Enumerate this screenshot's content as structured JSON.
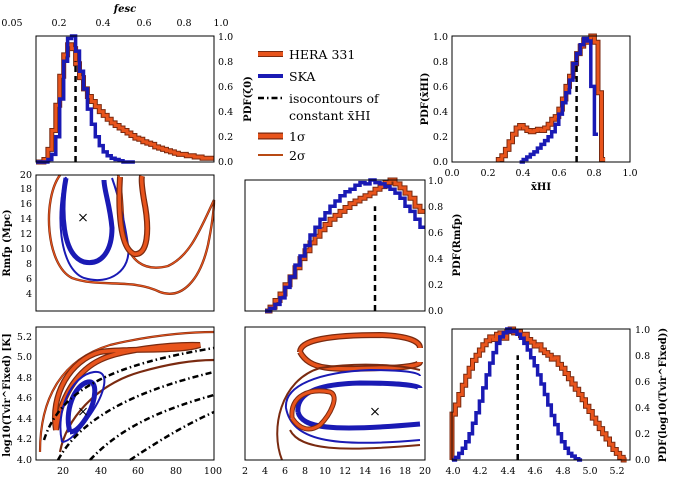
{
  "colors": {
    "hera": "#e8541c",
    "hera_edge": "#7a2a10",
    "ska": "#1a1ab4",
    "truth": "#000000"
  },
  "legend": {
    "items": [
      {
        "label": "HERA 331",
        "style": "hera"
      },
      {
        "label": "SKA",
        "style": "ska"
      },
      {
        "label": "isocontours of",
        "style": "dashdot"
      },
      {
        "label": "constant x̄HI",
        "style": "none"
      },
      {
        "label": "1σ",
        "style": "hera-thick"
      },
      {
        "label": "2σ",
        "style": "hera-thin"
      }
    ]
  },
  "chart_data": [
    {
      "id": "fesc_top_axis",
      "type": "axis",
      "title": "fesc",
      "ticks": [
        "0.05",
        "0.2",
        "0.4",
        "0.6",
        "0.8",
        "1.0"
      ]
    },
    {
      "id": "pdf_zeta",
      "type": "histogram",
      "ylabel": "PDF(ζ0)",
      "xlim": [
        10,
        100
      ],
      "ylim": [
        0,
        1.0
      ],
      "yticks": [
        "0.0",
        "0.2",
        "0.4",
        "0.6",
        "0.8",
        "1.0"
      ],
      "truth": 30,
      "series": [
        {
          "name": "HERA 331",
          "bins": [
            10,
            12,
            14,
            16,
            18,
            20,
            22,
            24,
            26,
            28,
            30,
            32,
            34,
            36,
            38,
            40,
            42,
            44,
            46,
            48,
            50,
            52,
            54,
            56,
            58,
            60,
            62,
            64,
            66,
            68,
            70,
            72,
            74,
            76,
            78,
            80,
            82,
            84,
            86,
            88,
            90,
            92,
            94,
            96,
            98,
            100
          ],
          "values": [
            0.0,
            0.0,
            0.02,
            0.1,
            0.25,
            0.45,
            0.68,
            0.85,
            0.93,
            0.9,
            0.78,
            0.67,
            0.58,
            0.52,
            0.48,
            0.44,
            0.4,
            0.37,
            0.34,
            0.31,
            0.29,
            0.27,
            0.25,
            0.23,
            0.21,
            0.19,
            0.18,
            0.16,
            0.15,
            0.14,
            0.12,
            0.11,
            0.1,
            0.09,
            0.08,
            0.07,
            0.06,
            0.06,
            0.05,
            0.05,
            0.04,
            0.04,
            0.03,
            0.03,
            0.03
          ]
        },
        {
          "name": "SKA",
          "bins": [
            10,
            12,
            14,
            16,
            18,
            20,
            22,
            24,
            26,
            28,
            30,
            32,
            34,
            36,
            38,
            40,
            42,
            44,
            46,
            48,
            50,
            52,
            54,
            56,
            58,
            60
          ],
          "values": [
            0.0,
            0.0,
            0.0,
            0.02,
            0.06,
            0.2,
            0.5,
            0.8,
            0.98,
            1.0,
            0.88,
            0.72,
            0.58,
            0.42,
            0.3,
            0.2,
            0.13,
            0.08,
            0.05,
            0.03,
            0.02,
            0.01,
            0.0,
            0.0,
            0.0
          ]
        }
      ]
    },
    {
      "id": "pdf_xhi",
      "type": "histogram",
      "xlabel": "x̄HI",
      "ylabel": "PDF(x̄HI)",
      "xlim": [
        0,
        1
      ],
      "ylim": [
        0,
        1.0
      ],
      "xticks": [
        "0.0",
        "0.2",
        "0.4",
        "0.6",
        "0.8",
        "1.0"
      ],
      "yticks": [
        "0.0",
        "0.2",
        "0.4",
        "0.6",
        "0.8",
        "1.0"
      ],
      "truth": 0.7,
      "series": [
        {
          "name": "HERA 331",
          "bins": [
            0.26,
            0.28,
            0.3,
            0.32,
            0.34,
            0.36,
            0.38,
            0.4,
            0.42,
            0.44,
            0.46,
            0.48,
            0.5,
            0.52,
            0.54,
            0.56,
            0.58,
            0.6,
            0.62,
            0.64,
            0.66,
            0.68,
            0.7,
            0.72,
            0.74,
            0.76,
            0.78,
            0.8,
            0.82,
            0.84,
            0.86
          ],
          "values": [
            0.02,
            0.05,
            0.1,
            0.16,
            0.22,
            0.27,
            0.29,
            0.27,
            0.25,
            0.24,
            0.25,
            0.26,
            0.25,
            0.27,
            0.3,
            0.34,
            0.36,
            0.42,
            0.5,
            0.6,
            0.68,
            0.78,
            0.86,
            0.92,
            0.97,
            0.95,
            1.0,
            0.95,
            0.55,
            0.02
          ]
        },
        {
          "name": "SKA",
          "bins": [
            0.38,
            0.4,
            0.42,
            0.44,
            0.46,
            0.48,
            0.5,
            0.52,
            0.54,
            0.56,
            0.58,
            0.6,
            0.62,
            0.64,
            0.66,
            0.68,
            0.7,
            0.72,
            0.74,
            0.76,
            0.78,
            0.8,
            0.82
          ],
          "values": [
            0.0,
            0.02,
            0.04,
            0.06,
            0.08,
            0.11,
            0.14,
            0.17,
            0.2,
            0.24,
            0.3,
            0.38,
            0.47,
            0.55,
            0.65,
            0.78,
            0.86,
            0.93,
            0.98,
            0.96,
            0.6,
            0.22
          ]
        }
      ]
    },
    {
      "id": "contour_rmfp_zeta",
      "type": "contour",
      "ylabel": "Rmfp (Mpc)",
      "xlim": [
        10,
        100
      ],
      "ylim": [
        2,
        20
      ],
      "yticks": [
        "4",
        "6",
        "8",
        "10",
        "12",
        "14",
        "16",
        "18",
        "20"
      ],
      "truth": [
        30,
        15
      ]
    },
    {
      "id": "pdf_rmfp",
      "type": "histogram",
      "ylabel": "PDF(Rmfp)",
      "xlim": [
        2,
        20
      ],
      "ylim": [
        0,
        1.0
      ],
      "yticks": [
        "0.0",
        "0.2",
        "0.4",
        "0.6",
        "0.8",
        "1.0"
      ],
      "truth": 15,
      "series": [
        {
          "name": "HERA 331",
          "bins": [
            4,
            4.5,
            5,
            5.5,
            6,
            6.5,
            7,
            7.5,
            8,
            8.5,
            9,
            9.5,
            10,
            10.5,
            11,
            11.5,
            12,
            12.5,
            13,
            13.5,
            14,
            14.5,
            15,
            15.5,
            16,
            16.5,
            17,
            17.5,
            18,
            18.5,
            19,
            19.5,
            20
          ],
          "values": [
            0.0,
            0.03,
            0.08,
            0.13,
            0.2,
            0.26,
            0.33,
            0.4,
            0.46,
            0.52,
            0.57,
            0.62,
            0.66,
            0.7,
            0.73,
            0.76,
            0.79,
            0.82,
            0.84,
            0.86,
            0.88,
            0.9,
            0.93,
            0.95,
            0.98,
            1.0,
            0.97,
            0.94,
            0.9,
            0.86,
            0.8,
            0.76
          ]
        },
        {
          "name": "SKA",
          "bins": [
            4,
            4.5,
            5,
            5.5,
            6,
            6.5,
            7,
            7.5,
            8,
            8.5,
            9,
            9.5,
            10,
            10.5,
            11,
            11.5,
            12,
            12.5,
            13,
            13.5,
            14,
            14.5,
            15,
            15.5,
            16,
            16.5,
            17,
            17.5,
            18,
            18.5,
            19,
            19.5,
            20
          ],
          "values": [
            0.0,
            0.02,
            0.05,
            0.1,
            0.18,
            0.26,
            0.35,
            0.42,
            0.5,
            0.58,
            0.64,
            0.7,
            0.75,
            0.8,
            0.84,
            0.88,
            0.91,
            0.93,
            0.96,
            0.98,
            0.97,
            1.0,
            0.98,
            0.97,
            0.95,
            0.93,
            0.9,
            0.86,
            0.8,
            0.76,
            0.7,
            0.64
          ]
        }
      ]
    },
    {
      "id": "contour_tvir_zeta",
      "type": "contour",
      "ylabel": "log10(Tvir^Fixed) [K]",
      "xlim": [
        10,
        100
      ],
      "ylim": [
        4.0,
        5.3
      ],
      "xticks": [
        "20",
        "40",
        "60",
        "80",
        "100"
      ],
      "yticks": [
        "4.0",
        "4.2",
        "4.4",
        "4.6",
        "4.8",
        "5.0",
        "5.2"
      ],
      "truth": [
        30,
        4.48
      ]
    },
    {
      "id": "contour_tvir_rmfp",
      "type": "contour",
      "xlim": [
        2,
        20
      ],
      "ylim": [
        4.0,
        5.3
      ],
      "xticks": [
        "2",
        "4",
        "6",
        "8",
        "10",
        "12",
        "14",
        "16",
        "18",
        "20"
      ],
      "truth": [
        15,
        4.48
      ]
    },
    {
      "id": "pdf_tvir",
      "type": "histogram",
      "ylabel": "PDF(log10(Tvir^Fixed))",
      "xlim": [
        4.0,
        5.3
      ],
      "ylim": [
        0,
        1.0
      ],
      "xticks": [
        "4.0",
        "4.2",
        "4.4",
        "4.6",
        "4.8",
        "5.0",
        "5.2"
      ],
      "yticks": [
        "0.0",
        "0.2",
        "0.4",
        "0.6",
        "0.8",
        "1.0"
      ],
      "truth": 4.48,
      "series": [
        {
          "name": "HERA 331",
          "bins": [
            4.0,
            4.025,
            4.05,
            4.075,
            4.1,
            4.125,
            4.15,
            4.175,
            4.2,
            4.225,
            4.25,
            4.275,
            4.3,
            4.325,
            4.35,
            4.375,
            4.4,
            4.425,
            4.45,
            4.475,
            4.5,
            4.525,
            4.55,
            4.575,
            4.6,
            4.625,
            4.65,
            4.675,
            4.7,
            4.725,
            4.75,
            4.775,
            4.8,
            4.825,
            4.85,
            4.875,
            4.9,
            4.925,
            4.95,
            4.975,
            5.0,
            5.025,
            5.05,
            5.075,
            5.1,
            5.125,
            5.15,
            5.175,
            5.2,
            5.225,
            5.25,
            5.275
          ],
          "values": [
            0.35,
            0.42,
            0.5,
            0.57,
            0.64,
            0.7,
            0.76,
            0.8,
            0.84,
            0.88,
            0.91,
            0.94,
            0.92,
            0.96,
            0.97,
            0.93,
            0.98,
            1.0,
            0.97,
            0.98,
            0.95,
            0.96,
            0.92,
            0.9,
            0.87,
            0.88,
            0.84,
            0.82,
            0.8,
            0.77,
            0.78,
            0.73,
            0.7,
            0.66,
            0.62,
            0.58,
            0.54,
            0.5,
            0.46,
            0.41,
            0.37,
            0.32,
            0.28,
            0.24,
            0.2,
            0.16,
            0.12,
            0.08,
            0.05,
            0.02,
            0.0
          ]
        },
        {
          "name": "SKA",
          "bins": [
            4.0,
            4.025,
            4.05,
            4.075,
            4.1,
            4.125,
            4.15,
            4.175,
            4.2,
            4.225,
            4.25,
            4.275,
            4.3,
            4.325,
            4.35,
            4.375,
            4.4,
            4.425,
            4.45,
            4.475,
            4.5,
            4.525,
            4.55,
            4.575,
            4.6,
            4.625,
            4.65,
            4.675,
            4.7,
            4.725,
            4.75,
            4.775,
            4.8,
            4.825,
            4.85,
            4.875,
            4.9,
            4.925,
            4.95
          ],
          "values": [
            0.0,
            0.02,
            0.05,
            0.09,
            0.14,
            0.2,
            0.28,
            0.36,
            0.45,
            0.55,
            0.65,
            0.74,
            0.82,
            0.89,
            0.94,
            0.97,
            1.0,
            0.98,
            0.99,
            0.96,
            0.93,
            0.89,
            0.84,
            0.78,
            0.72,
            0.65,
            0.58,
            0.5,
            0.42,
            0.34,
            0.27,
            0.2,
            0.14,
            0.09,
            0.05,
            0.03,
            0.01,
            0.0
          ]
        }
      ]
    }
  ]
}
